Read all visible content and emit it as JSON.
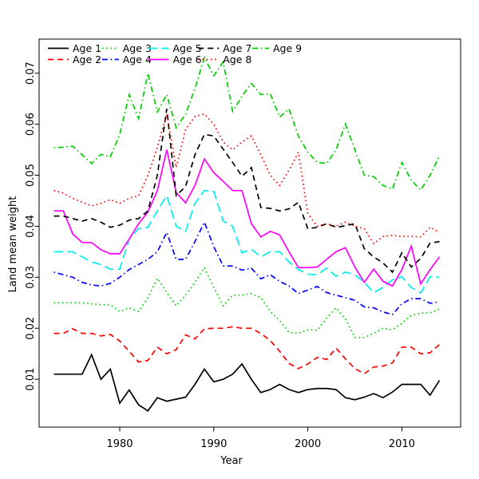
{
  "chart_data": {
    "type": "line",
    "title": "",
    "xlabel": "Year",
    "ylabel": "Land mean weight",
    "grid": false,
    "legend_position": "top-left-inside-two-rows",
    "background_color": "#ffffff",
    "axis_color": "#000000",
    "x_tick_values": [
      1980,
      1990,
      2000,
      2010
    ],
    "x_tick_labels": [
      "1980",
      "1990",
      "2000",
      "2010"
    ],
    "y_tick_values": [
      0.01,
      0.02,
      0.03,
      0.04,
      0.05,
      0.06,
      0.07
    ],
    "y_tick_labels": [
      "0.01",
      "0.02",
      "0.03",
      "0.04",
      "0.05",
      "0.06",
      "0.07"
    ],
    "xlim": [
      1971.4,
      2015.6
    ],
    "ylim": [
      0.0008,
      0.0767
    ],
    "x": [
      1973,
      1974,
      1975,
      1976,
      1977,
      1978,
      1979,
      1980,
      1981,
      1982,
      1983,
      1984,
      1985,
      1986,
      1987,
      1988,
      1989,
      1990,
      1991,
      1992,
      1993,
      1994,
      1995,
      1996,
      1997,
      1998,
      1999,
      2000,
      2001,
      2002,
      2003,
      2004,
      2005,
      2006,
      2007,
      2008,
      2009,
      2010,
      2011,
      2012,
      2013,
      2014
    ],
    "series": [
      {
        "name": "Age 1",
        "color": "#000000",
        "linestyle": "solid",
        "values": [
          0.011,
          0.011,
          0.011,
          0.011,
          0.0148,
          0.01,
          0.012,
          0.0053,
          0.0079,
          0.005,
          0.0038,
          0.0064,
          0.0057,
          0.0061,
          0.0065,
          0.009,
          0.012,
          0.0095,
          0.01,
          0.011,
          0.013,
          0.01,
          0.0074,
          0.008,
          0.009,
          0.008,
          0.0074,
          0.008,
          0.0082,
          0.0082,
          0.008,
          0.0064,
          0.006,
          0.0065,
          0.0072,
          0.0064,
          0.0075,
          0.009,
          0.009,
          0.009,
          0.0069,
          0.0098
        ]
      },
      {
        "name": "Age 2",
        "color": "#ff0000",
        "linestyle": "dashed",
        "values": [
          0.019,
          0.019,
          0.0199,
          0.019,
          0.019,
          0.0185,
          0.0188,
          0.0175,
          0.0155,
          0.0134,
          0.0137,
          0.0163,
          0.015,
          0.0158,
          0.0187,
          0.0179,
          0.0199,
          0.02,
          0.02,
          0.0203,
          0.02,
          0.02,
          0.019,
          0.0176,
          0.0155,
          0.0131,
          0.0121,
          0.013,
          0.0143,
          0.0139,
          0.0161,
          0.014,
          0.0121,
          0.0111,
          0.0124,
          0.0126,
          0.0132,
          0.0163,
          0.0163,
          0.015,
          0.0152,
          0.0168
        ]
      },
      {
        "name": "Age 3",
        "color": "#00cd00",
        "linestyle": "dotted",
        "values": [
          0.025,
          0.025,
          0.025,
          0.025,
          0.0248,
          0.0246,
          0.0246,
          0.0233,
          0.024,
          0.0233,
          0.026,
          0.0298,
          0.027,
          0.0244,
          0.0265,
          0.029,
          0.0319,
          0.028,
          0.0244,
          0.0265,
          0.0265,
          0.0268,
          0.026,
          0.0233,
          0.0215,
          0.0192,
          0.019,
          0.0197,
          0.0196,
          0.022,
          0.024,
          0.0218,
          0.0182,
          0.0182,
          0.019,
          0.02,
          0.0197,
          0.021,
          0.0225,
          0.023,
          0.023,
          0.0238
        ]
      },
      {
        "name": "Age 4",
        "color": "#0000ff",
        "linestyle": "dashdot",
        "values": [
          0.031,
          0.0305,
          0.03,
          0.029,
          0.0285,
          0.0283,
          0.0288,
          0.03,
          0.0315,
          0.0325,
          0.0335,
          0.035,
          0.0388,
          0.0335,
          0.0335,
          0.037,
          0.0408,
          0.036,
          0.0322,
          0.0322,
          0.0314,
          0.0318,
          0.0297,
          0.0305,
          0.0292,
          0.0283,
          0.0268,
          0.0275,
          0.0282,
          0.027,
          0.0265,
          0.026,
          0.0255,
          0.0242,
          0.024,
          0.0232,
          0.0227,
          0.0248,
          0.0258,
          0.0258,
          0.0249,
          0.0252
        ]
      },
      {
        "name": "Age 5",
        "color": "#00eeee",
        "linestyle": "longdash",
        "values": [
          0.035,
          0.035,
          0.035,
          0.034,
          0.033,
          0.0325,
          0.0316,
          0.0316,
          0.0375,
          0.0395,
          0.0398,
          0.043,
          0.046,
          0.04,
          0.039,
          0.0445,
          0.047,
          0.0468,
          0.041,
          0.04,
          0.0348,
          0.0355,
          0.034,
          0.035,
          0.035,
          0.033,
          0.0315,
          0.0306,
          0.0305,
          0.0318,
          0.0302,
          0.031,
          0.0305,
          0.029,
          0.027,
          0.028,
          0.0295,
          0.0301,
          0.028,
          0.0269,
          0.0301,
          0.03
        ]
      },
      {
        "name": "Age 6",
        "color": "#ff00ff",
        "linestyle": "solid",
        "values": [
          0.043,
          0.043,
          0.0385,
          0.0368,
          0.0368,
          0.0354,
          0.0346,
          0.0346,
          0.0375,
          0.0405,
          0.0428,
          0.047,
          0.055,
          0.0466,
          0.0446,
          0.048,
          0.0532,
          0.0505,
          0.0488,
          0.047,
          0.047,
          0.0405,
          0.0379,
          0.039,
          0.0383,
          0.035,
          0.0319,
          0.0319,
          0.032,
          0.0335,
          0.035,
          0.0358,
          0.032,
          0.029,
          0.0316,
          0.0292,
          0.0283,
          0.0315,
          0.0361,
          0.0287,
          0.0315,
          0.034
        ]
      },
      {
        "name": "Age 7",
        "color": "#000000",
        "linestyle": "dashed",
        "values": [
          0.042,
          0.042,
          0.0415,
          0.041,
          0.0415,
          0.0408,
          0.0398,
          0.0402,
          0.0412,
          0.0415,
          0.043,
          0.05,
          0.063,
          0.046,
          0.0478,
          0.054,
          0.058,
          0.0577,
          0.0551,
          0.0525,
          0.0498,
          0.0515,
          0.0437,
          0.0435,
          0.043,
          0.0434,
          0.0447,
          0.0395,
          0.0398,
          0.0405,
          0.0398,
          0.0401,
          0.0405,
          0.0356,
          0.034,
          0.0328,
          0.031,
          0.0348,
          0.032,
          0.0337,
          0.0367,
          0.037
        ]
      },
      {
        "name": "Age 8",
        "color": "#ff0000",
        "linestyle": "dotted",
        "values": [
          0.047,
          0.0465,
          0.0455,
          0.0447,
          0.044,
          0.0445,
          0.0452,
          0.0445,
          0.0455,
          0.046,
          0.05,
          0.0555,
          0.062,
          0.0515,
          0.059,
          0.0615,
          0.062,
          0.06,
          0.0565,
          0.055,
          0.0565,
          0.0577,
          0.054,
          0.05,
          0.048,
          0.051,
          0.0545,
          0.0425,
          0.04,
          0.0405,
          0.04,
          0.0408,
          0.04,
          0.0395,
          0.0366,
          0.038,
          0.0382,
          0.038,
          0.038,
          0.0379,
          0.0398,
          0.0388
        ]
      },
      {
        "name": "Age 9",
        "color": "#00cd00",
        "linestyle": "dashdot",
        "values": [
          0.0554,
          0.0555,
          0.0557,
          0.054,
          0.0523,
          0.0541,
          0.0536,
          0.058,
          0.0658,
          0.0611,
          0.07,
          0.0624,
          0.0658,
          0.0593,
          0.062,
          0.067,
          0.0731,
          0.0695,
          0.0722,
          0.0625,
          0.0655,
          0.068,
          0.0658,
          0.066,
          0.0614,
          0.063,
          0.0577,
          0.0545,
          0.0525,
          0.0523,
          0.055,
          0.06,
          0.055,
          0.05,
          0.0497,
          0.048,
          0.0473,
          0.0525,
          0.049,
          0.0471,
          0.05,
          0.0538
        ]
      }
    ]
  }
}
